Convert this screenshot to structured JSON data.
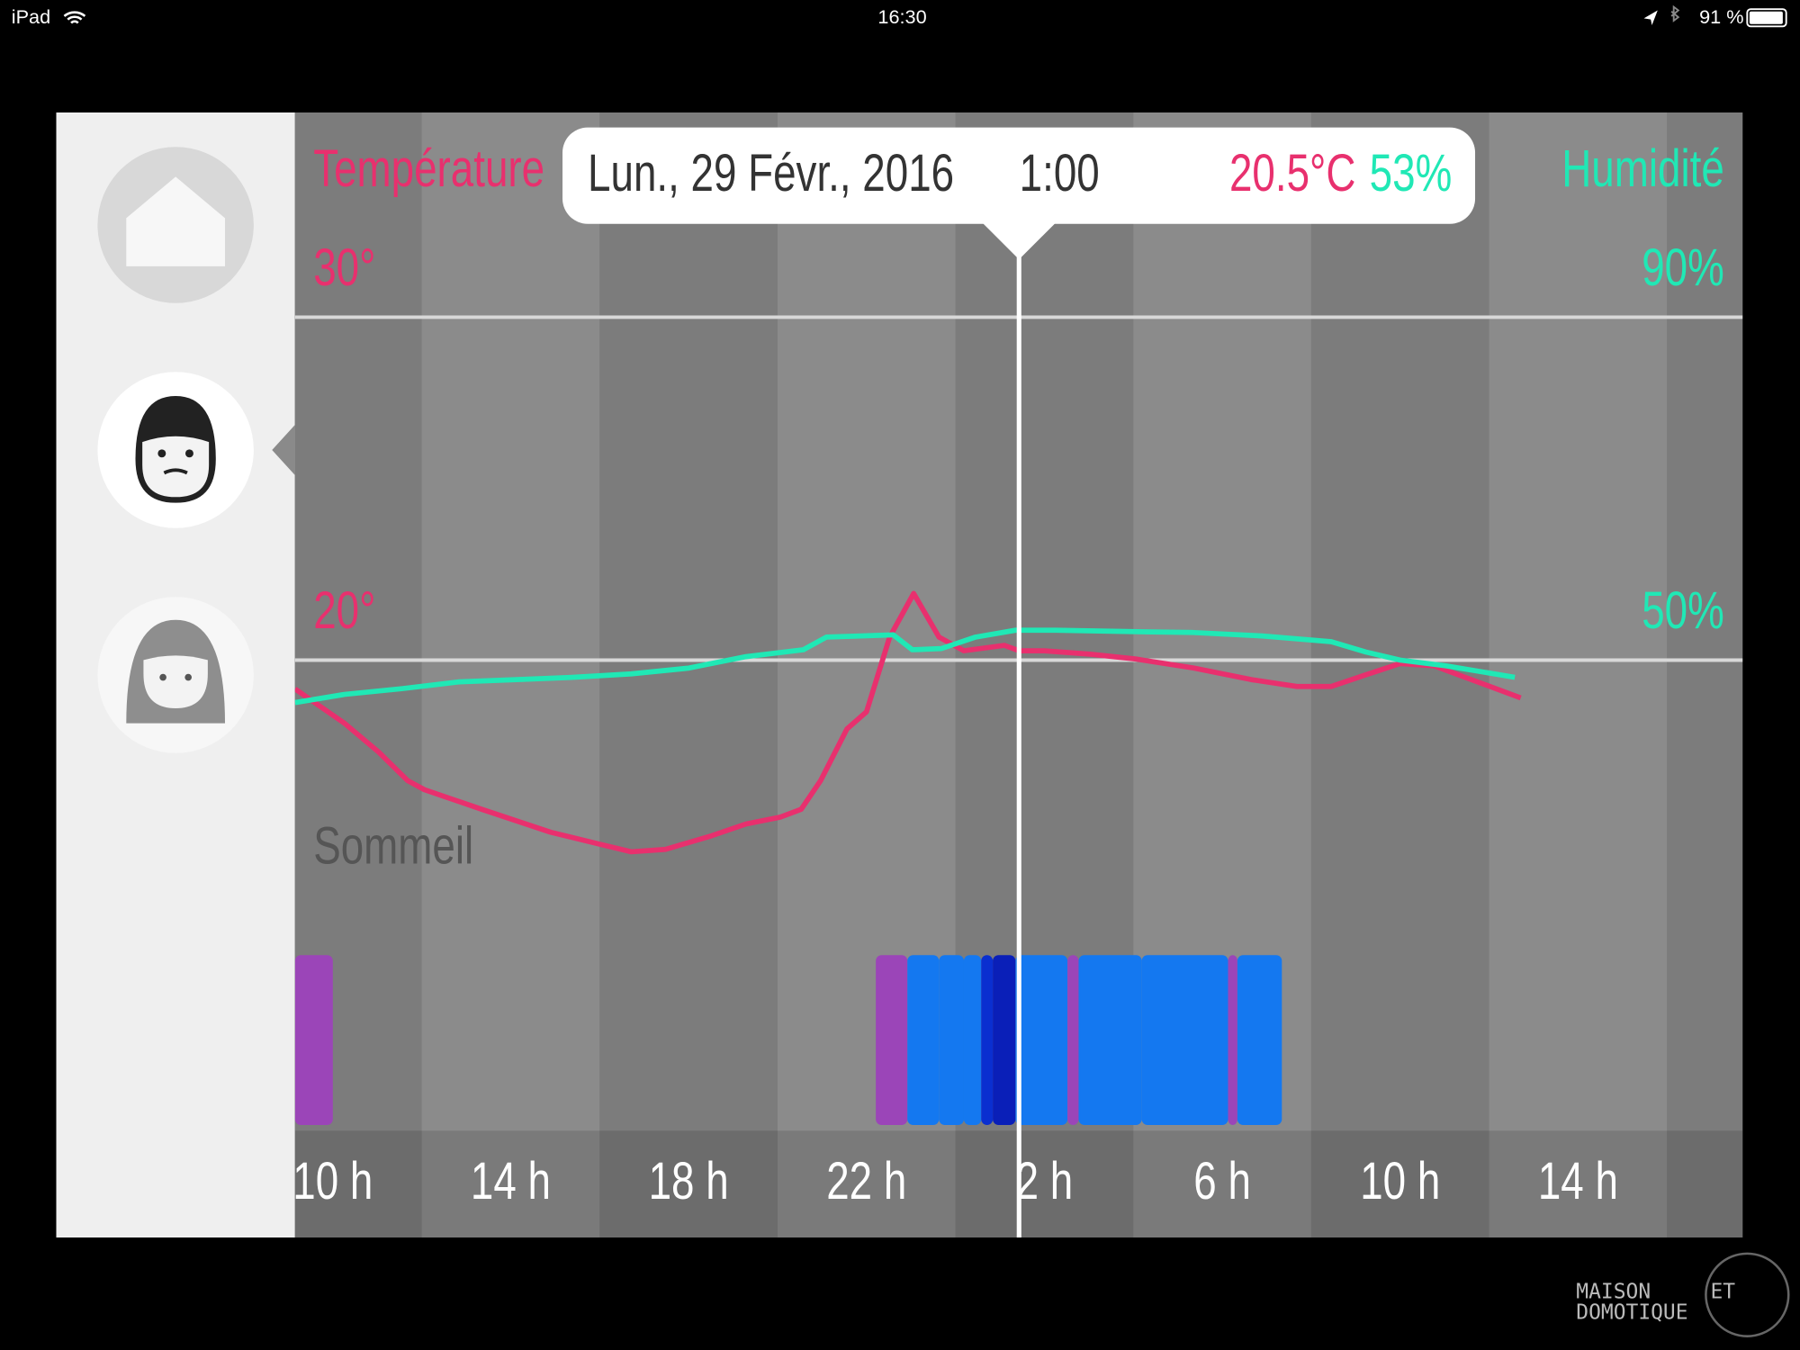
{
  "status_bar": {
    "device": "iPad",
    "time": "16:30",
    "battery": "91 %"
  },
  "chart_data": {
    "type": "line",
    "tooltip": {
      "date": "Lun., 29 Févr., 2016",
      "time": "1:00",
      "temperature": "20.5°C",
      "humidity": "53%"
    },
    "cursor_x": 25.43,
    "xlim": [
      9.15,
      41.7
    ],
    "xticks": [
      {
        "value": 10,
        "label": "10 h"
      },
      {
        "value": 14,
        "label": "14 h"
      },
      {
        "value": 18,
        "label": "18 h"
      },
      {
        "value": 22,
        "label": "22 h"
      },
      {
        "value": 26,
        "label": "2 h"
      },
      {
        "value": 30,
        "label": "6 h"
      },
      {
        "value": 34,
        "label": "10 h"
      },
      {
        "value": 38,
        "label": "14 h"
      }
    ],
    "ylim": [
      4,
      36
    ],
    "yticks": [
      {
        "value": 20,
        "label": "20°"
      },
      {
        "value": 30,
        "label": "30°"
      }
    ],
    "y2lim": [
      -14,
      114
    ],
    "y2ticks": [
      {
        "value": 50,
        "label": "50%"
      },
      {
        "value": 90,
        "label": "90%"
      }
    ],
    "grid": true,
    "series": [
      {
        "name": "Température",
        "color": "#e8306e",
        "x": [
          9.15,
          10.26,
          11.03,
          11.68,
          12.06,
          13.35,
          14.9,
          15.94,
          16.71,
          17.48,
          18.52,
          19.29,
          20.06,
          20.53,
          20.97,
          21.56,
          22.0,
          22.52,
          23.06,
          23.63,
          24.19,
          25.1,
          25.43,
          26.0,
          27.03,
          28.06,
          29.35,
          30.65,
          31.68,
          32.45,
          33.23,
          34.0,
          34.77,
          35.81,
          36.71
        ],
        "values": [
          19.16,
          18.16,
          17.32,
          16.49,
          16.22,
          15.65,
          14.98,
          14.65,
          14.41,
          14.48,
          14.88,
          15.22,
          15.42,
          15.65,
          16.49,
          17.99,
          18.49,
          20.67,
          21.94,
          20.67,
          20.27,
          20.43,
          20.27,
          20.27,
          20.17,
          20.03,
          19.77,
          19.43,
          19.23,
          19.23,
          19.57,
          19.9,
          19.83,
          19.33,
          18.9
        ]
      },
      {
        "name": "Humidité",
        "color": "#20e8b5",
        "axis": "y2",
        "x": [
          9.15,
          10.26,
          11.55,
          12.84,
          14.13,
          15.42,
          16.71,
          18.0,
          19.29,
          20.58,
          21.1,
          21.87,
          22.6,
          23.03,
          23.68,
          24.45,
          25.35,
          26.26,
          27.81,
          29.35,
          30.9,
          32.45,
          33.23,
          34.0,
          35.03,
          36.58
        ],
        "values": [
          45.05,
          45.99,
          46.66,
          47.46,
          47.73,
          47.99,
          48.39,
          49.06,
          50.4,
          51.2,
          52.68,
          52.81,
          52.94,
          51.2,
          51.34,
          52.68,
          53.48,
          53.48,
          53.34,
          53.21,
          52.81,
          52.14,
          50.94,
          50.0,
          49.33,
          47.99
        ]
      }
    ],
    "sleep": {
      "label": "Sommeil",
      "segments": [
        {
          "start": 9.15,
          "end": 10.0,
          "color": "#9b45b8"
        },
        {
          "start": 22.21,
          "end": 22.92,
          "color": "#9b45b8"
        },
        {
          "start": 22.92,
          "end": 23.63,
          "color": "#1478f0"
        },
        {
          "start": 23.63,
          "end": 24.19,
          "color": "#1478f0"
        },
        {
          "start": 24.19,
          "end": 24.58,
          "color": "#1478f0"
        },
        {
          "start": 24.58,
          "end": 24.84,
          "color": "#0a2fd0"
        },
        {
          "start": 24.84,
          "end": 25.35,
          "color": "#0a1fb8"
        },
        {
          "start": 25.35,
          "end": 26.52,
          "color": "#1478f0"
        },
        {
          "start": 26.52,
          "end": 26.77,
          "color": "#9b45b8"
        },
        {
          "start": 26.77,
          "end": 28.19,
          "color": "#1478f0"
        },
        {
          "start": 28.19,
          "end": 30.13,
          "color": "#1478f0"
        },
        {
          "start": 30.13,
          "end": 30.34,
          "color": "#9b45b8"
        },
        {
          "start": 30.34,
          "end": 31.34,
          "color": "#1478f0"
        }
      ]
    }
  },
  "watermark": [
    "MAISON",
    "ET",
    "DOMOTIQUE"
  ]
}
